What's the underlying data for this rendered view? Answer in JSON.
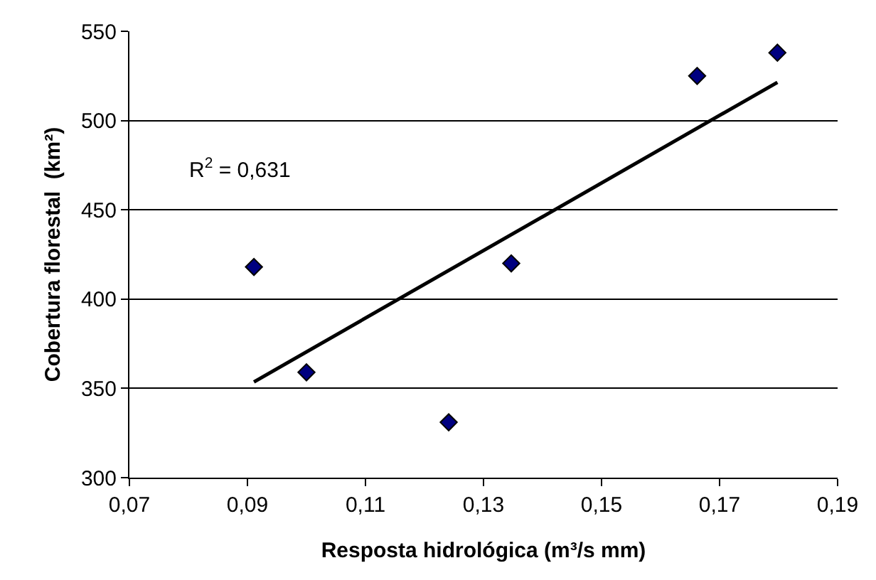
{
  "chart_data": {
    "type": "scatter",
    "xlabel": "Resposta hidrológica (m³/s mm)",
    "ylabel": "Cobertura florestal  (km²)",
    "annotations": [
      "R$^{2}$ = 0,631"
    ],
    "series": [
      {
        "color": "#000080",
        "marker": "diamond",
        "x": [
          0.0911,
          0.1,
          0.1241,
          0.1347,
          0.1662,
          0.1798
        ],
        "values": [
          418,
          359,
          331,
          420,
          525,
          538
        ]
      },
      {
        "type": "line",
        "color": "#000000",
        "marker": "none",
        "line_style": "solid",
        "x": [
          0.0911,
          0.1798
        ],
        "values": [
          353.6,
          521.4
        ]
      }
    ],
    "xlim": [
      0.07,
      0.19
    ],
    "xticks": [
      {
        "value": 0.07,
        "label": "0,07"
      },
      {
        "value": 0.09,
        "label": "0,09"
      },
      {
        "value": 0.11,
        "label": "0,11"
      },
      {
        "value": 0.13,
        "label": "0,13"
      },
      {
        "value": 0.15,
        "label": "0,15"
      },
      {
        "value": 0.17,
        "label": "0,17"
      },
      {
        "value": 0.19,
        "label": "0,19"
      }
    ],
    "ylim": [
      300,
      550
    ],
    "yticks": [
      300,
      350,
      400,
      450,
      500,
      550
    ],
    "grid": "y"
  }
}
